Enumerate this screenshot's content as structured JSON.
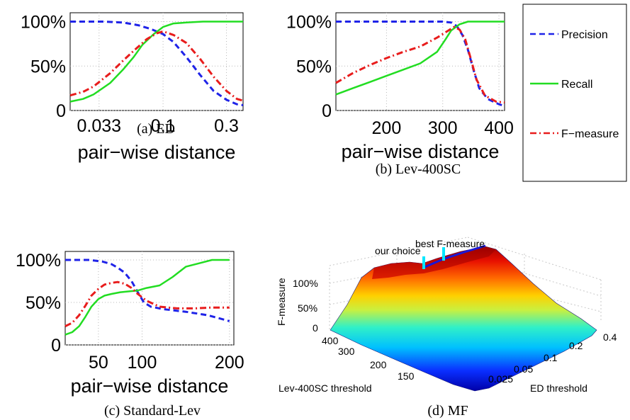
{
  "chart_data": [
    {
      "id": "a",
      "type": "line",
      "caption": "(a) ED",
      "xlabel": "pair−wise distance",
      "xscale": "log",
      "xlim": [
        0.02,
        0.4
      ],
      "ylim": [
        0,
        110
      ],
      "xticks": [
        {
          "v": 0.033,
          "label": "0.033"
        },
        {
          "v": 0.1,
          "label": "0.1"
        },
        {
          "v": 0.3,
          "label": "0.3"
        }
      ],
      "yticks": [
        {
          "v": 0,
          "label": "0"
        },
        {
          "v": 50,
          "label": "50%"
        },
        {
          "v": 100,
          "label": "100%"
        }
      ],
      "series": [
        {
          "name": "Precision",
          "x": [
            0.02,
            0.035,
            0.05,
            0.065,
            0.08,
            0.1,
            0.12,
            0.15,
            0.19,
            0.24,
            0.3,
            0.36,
            0.4
          ],
          "y": [
            100,
            100,
            99,
            96,
            92,
            86,
            77,
            60,
            40,
            22,
            12,
            7,
            6
          ]
        },
        {
          "name": "Recall",
          "x": [
            0.02,
            0.025,
            0.03,
            0.04,
            0.05,
            0.06,
            0.07,
            0.085,
            0.1,
            0.12,
            0.15,
            0.2,
            0.3,
            0.4
          ],
          "y": [
            10,
            13,
            18,
            31,
            46,
            60,
            74,
            86,
            94,
            98,
            99,
            100,
            100,
            100
          ]
        },
        {
          "name": "F-measure",
          "x": [
            0.02,
            0.025,
            0.03,
            0.04,
            0.05,
            0.06,
            0.075,
            0.09,
            0.1,
            0.12,
            0.15,
            0.19,
            0.24,
            0.3,
            0.36,
            0.4
          ],
          "y": [
            17,
            21,
            27,
            42,
            56,
            67,
            80,
            87,
            89,
            85,
            76,
            58,
            38,
            22,
            13,
            11
          ]
        }
      ]
    },
    {
      "id": "b",
      "type": "line",
      "caption": "(b) Lev-400SC",
      "xlabel": "pair−wise distance",
      "xscale": "linear",
      "xlim": [
        110,
        410
      ],
      "ylim": [
        0,
        110
      ],
      "xticks": [
        {
          "v": 200,
          "label": "200"
        },
        {
          "v": 300,
          "label": "300"
        },
        {
          "v": 400,
          "label": "400"
        }
      ],
      "yticks": [
        {
          "v": 0,
          "label": "0"
        },
        {
          "v": 50,
          "label": "50%"
        },
        {
          "v": 100,
          "label": "100%"
        }
      ],
      "series": [
        {
          "name": "Precision",
          "x": [
            110,
            250,
            300,
            315,
            325,
            335,
            345,
            355,
            365,
            380,
            400,
            410
          ],
          "y": [
            100,
            100,
            100,
            99,
            95,
            85,
            68,
            45,
            25,
            13,
            7,
            5
          ]
        },
        {
          "name": "Recall",
          "x": [
            110,
            140,
            170,
            200,
            230,
            260,
            290,
            305,
            315,
            330,
            345,
            360,
            410
          ],
          "y": [
            18,
            25,
            32,
            39,
            46,
            53,
            66,
            80,
            90,
            97,
            100,
            100,
            100
          ]
        },
        {
          "name": "F-measure",
          "x": [
            110,
            140,
            170,
            200,
            230,
            260,
            290,
            310,
            320,
            330,
            340,
            350,
            360,
            375,
            395,
            410
          ],
          "y": [
            31,
            42,
            51,
            59,
            66,
            72,
            82,
            90,
            94,
            91,
            80,
            58,
            35,
            17,
            10,
            9
          ]
        }
      ]
    },
    {
      "id": "c",
      "type": "line",
      "caption": "(c) Standard-Lev",
      "xlabel": "pair−wise distance",
      "xscale": "linear",
      "xlim": [
        12,
        205
      ],
      "ylim": [
        0,
        110
      ],
      "xticks": [
        {
          "v": 50,
          "label": "50"
        },
        {
          "v": 100,
          "label": "100"
        },
        {
          "v": 200,
          "label": "200"
        }
      ],
      "yticks": [
        {
          "v": 0,
          "label": "0"
        },
        {
          "v": 50,
          "label": "50%"
        },
        {
          "v": 100,
          "label": "100%"
        }
      ],
      "series": [
        {
          "name": "Precision",
          "x": [
            12,
            40,
            55,
            65,
            72,
            80,
            88,
            95,
            102,
            110,
            125,
            150,
            175,
            200
          ],
          "y": [
            100,
            100,
            98,
            95,
            91,
            85,
            75,
            62,
            50,
            45,
            42,
            39,
            35,
            28
          ]
        },
        {
          "name": "Recall",
          "x": [
            12,
            20,
            28,
            35,
            42,
            50,
            57,
            65,
            75,
            85,
            95,
            105,
            120,
            135,
            150,
            165,
            180,
            200
          ],
          "y": [
            12,
            15,
            22,
            33,
            45,
            54,
            58,
            60,
            62,
            63,
            64,
            67,
            70,
            80,
            92,
            96,
            100,
            100
          ]
        },
        {
          "name": "F-measure",
          "x": [
            12,
            20,
            28,
            35,
            42,
            50,
            57,
            65,
            72,
            80,
            88,
            95,
            105,
            120,
            140,
            160,
            180,
            200
          ],
          "y": [
            22,
            26,
            35,
            46,
            58,
            66,
            71,
            73,
            74,
            72,
            67,
            60,
            52,
            45,
            43,
            43,
            44,
            44
          ]
        }
      ]
    }
  ],
  "legend": {
    "items": [
      {
        "name": "Precision",
        "label": "Precision"
      },
      {
        "name": "Recall",
        "label": "Recall"
      },
      {
        "name": "F-measure",
        "label": "F−measure"
      }
    ]
  },
  "colors": {
    "Precision": "#1f23e8",
    "Recall": "#22dd22",
    "F-measure": "#e81c1c",
    "grid": "#b8b8b8"
  },
  "surface": {
    "caption": "(d) MF",
    "zlabel": "F-measure",
    "xlabel": "ED threshold",
    "ylabel": "Lev-400SC threshold",
    "zticks": [
      "0",
      "50%",
      "100%"
    ],
    "xticks": [
      "0.025",
      "0.05",
      "0.1",
      "0.2",
      "0.4"
    ],
    "yticks": [
      "150",
      "200",
      "300",
      "400"
    ],
    "annotations": {
      "best": "best F-measure",
      "ours": "our choice"
    }
  }
}
